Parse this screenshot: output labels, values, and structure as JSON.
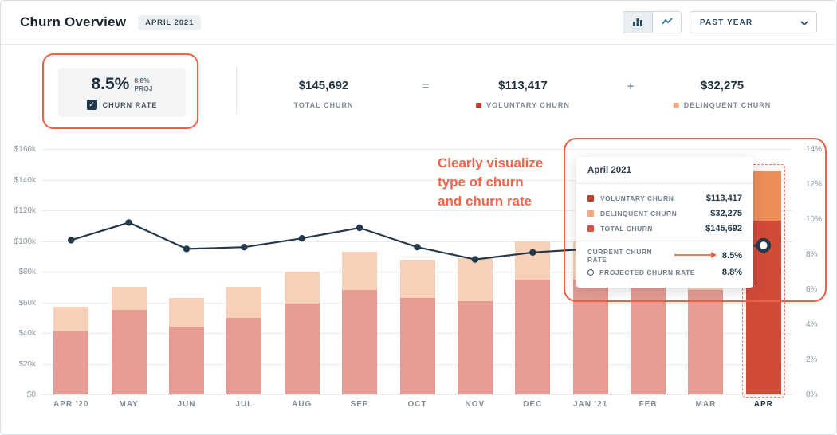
{
  "colors": {
    "voluntary": "#e59d93",
    "delinquent": "#f6d1b7",
    "voluntary_hl": "#d04b37",
    "delinquent_hl": "#ef8d58",
    "voluntary_marker": "#c13e2c",
    "delinquent_marker": "#f2a97e",
    "line": "#24394b",
    "accent": "#ef6049"
  },
  "header": {
    "title": "Churn Overview",
    "badge": "APRIL 2021",
    "period_selector": "PAST YEAR"
  },
  "stats": {
    "churn_rate": {
      "value": "8.5%",
      "proj_value": "8.8%",
      "proj_label": "PROJ",
      "label": "CHURN RATE"
    },
    "total": {
      "value": "$145,692",
      "label": "TOTAL CHURN"
    },
    "equals": "=",
    "voluntary": {
      "value": "$113,417",
      "label": "VOLUNTARY CHURN"
    },
    "plus": "+",
    "delinquent": {
      "value": "$32,275",
      "label": "DELINQUENT CHURN"
    }
  },
  "annotation": {
    "lines": [
      "Clearly visualize",
      "type of churn",
      "and churn rate"
    ]
  },
  "tooltip": {
    "title": "April 2021",
    "rows": [
      {
        "label": "VOLUNTARY CHURN",
        "value": "$113,417",
        "color": "#c13e2c"
      },
      {
        "label": "DELINQUENT CHURN",
        "value": "$32,275",
        "color": "#f2a97e"
      },
      {
        "label": "TOTAL CHURN",
        "value": "$145,692",
        "color": "#d85140"
      }
    ],
    "current_rate": {
      "label": "CURRENT CHURN RATE",
      "value": "8.5%"
    },
    "projected_rate": {
      "label": "PROJECTED CHURN RATE",
      "value": "8.8%"
    }
  },
  "chart_data": {
    "type": "bar",
    "subtype": "stacked-bars-with-rate-line",
    "categories": [
      "APR '20",
      "MAY",
      "JUN",
      "JUL",
      "AUG",
      "SEP",
      "OCT",
      "NOV",
      "DEC",
      "JAN '21",
      "FEB",
      "MAR",
      "APR"
    ],
    "series": [
      {
        "name": "Voluntary Churn ($k)",
        "values": [
          41,
          55,
          44,
          50,
          59,
          68,
          63,
          61,
          75,
          75,
          70,
          68,
          113.417
        ]
      },
      {
        "name": "Delinquent Churn ($k)",
        "values": [
          16,
          15,
          19,
          20,
          21,
          25,
          25,
          28,
          25,
          25,
          27,
          22,
          32.275
        ]
      }
    ],
    "line": {
      "name": "Churn Rate (%)",
      "values": [
        8.8,
        9.8,
        8.3,
        8.4,
        8.9,
        9.5,
        8.4,
        7.7,
        8.1,
        8.3,
        8.6,
        8.4,
        8.5
      ]
    },
    "y_left": {
      "ticks": [
        "$0",
        "$20k",
        "$40k",
        "$60k",
        "$80k",
        "$100k",
        "$120k",
        "$140k",
        "$160k"
      ],
      "max": 160
    },
    "y_right": {
      "ticks": [
        "0%",
        "2%",
        "4%",
        "6%",
        "8%",
        "10%",
        "12%",
        "14%"
      ],
      "max": 14
    },
    "highlight_index": 12
  }
}
